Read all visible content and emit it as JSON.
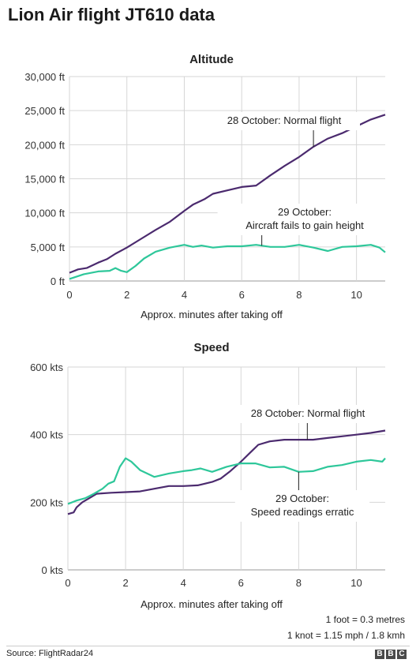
{
  "title": "Lion Air flight JT610 data",
  "notes": [
    "1 foot = 0.3 metres",
    "1 knot = 1.15 mph / 1.8 kmh"
  ],
  "source": "Source: FlightRadar24",
  "logo_letters": [
    "B",
    "B",
    "C"
  ],
  "colors": {
    "normal": "#4b2a6e",
    "erratic": "#2ec79a",
    "grid": "#d6d6d6"
  },
  "chart_data": [
    {
      "type": "line",
      "title": "Altitude",
      "xlabel": "Approx. minutes after taking off",
      "ylabel": "",
      "xlim": [
        0,
        11
      ],
      "ylim": [
        0,
        30000
      ],
      "x_ticks": [
        0,
        2,
        4,
        6,
        8,
        10
      ],
      "y_ticks": [
        0,
        5000,
        10000,
        15000,
        20000,
        25000,
        30000
      ],
      "y_tick_labels": [
        "0 ft",
        "5,000 ft",
        "10,000 ft",
        "15,000 ft",
        "20,000 ft",
        "25,000 ft",
        "30,000 ft"
      ],
      "grid": true,
      "series": [
        {
          "name": "28 October: Normal flight",
          "x": [
            0,
            0.3,
            0.6,
            1,
            1.3,
            1.6,
            2,
            2.5,
            3,
            3.5,
            4,
            4.3,
            4.7,
            5,
            5.5,
            6,
            6.5,
            7,
            7.5,
            8,
            8.5,
            9,
            9.5,
            10,
            10.5,
            11
          ],
          "y": [
            1200,
            1700,
            1900,
            2700,
            3200,
            4000,
            4900,
            6200,
            7500,
            8700,
            10300,
            11200,
            12000,
            12800,
            13300,
            13800,
            14000,
            15500,
            16900,
            18200,
            19700,
            20900,
            21700,
            22700,
            23700,
            24400
          ]
        },
        {
          "name": "29 October: Aircraft fails to gain height",
          "x": [
            0,
            0.5,
            1,
            1.4,
            1.6,
            1.8,
            2,
            2.3,
            2.6,
            3,
            3.5,
            4,
            4.3,
            4.6,
            5,
            5.5,
            6,
            6.5,
            7,
            7.5,
            8,
            8.5,
            9,
            9.5,
            10,
            10.5,
            10.8,
            11
          ],
          "y": [
            300,
            1000,
            1400,
            1500,
            1900,
            1500,
            1300,
            2200,
            3300,
            4300,
            4900,
            5300,
            5000,
            5200,
            4900,
            5100,
            5100,
            5300,
            5000,
            5000,
            5300,
            4900,
            4400,
            5000,
            5100,
            5300,
            4900,
            4200
          ]
        }
      ],
      "annotations": [
        {
          "text": "28 October: Normal flight",
          "series": 0,
          "x": 8.5
        },
        {
          "lines": [
            "29 October:",
            "Aircraft fails to gain height"
          ],
          "series": 1,
          "x": 6.7
        }
      ]
    },
    {
      "type": "line",
      "title": "Speed",
      "xlabel": "Approx. minutes after taking off",
      "ylabel": "",
      "xlim": [
        0,
        11
      ],
      "ylim": [
        0,
        600
      ],
      "x_ticks": [
        0,
        2,
        4,
        6,
        8,
        10
      ],
      "y_ticks": [
        0,
        200,
        400,
        600
      ],
      "y_tick_labels": [
        "0 kts",
        "200 kts",
        "400 kts",
        "600 kts"
      ],
      "grid": true,
      "series": [
        {
          "name": "28 October: Normal flight",
          "x": [
            0,
            0.2,
            0.3,
            0.5,
            0.8,
            1,
            1.5,
            2,
            2.5,
            3,
            3.5,
            4,
            4.5,
            5,
            5.3,
            5.6,
            6,
            6.3,
            6.6,
            7,
            7.5,
            8,
            8.5,
            9,
            9.5,
            10,
            10.5,
            11
          ],
          "y": [
            165,
            170,
            185,
            200,
            215,
            225,
            228,
            230,
            232,
            240,
            248,
            248,
            250,
            260,
            270,
            290,
            320,
            345,
            370,
            380,
            385,
            385,
            385,
            390,
            395,
            400,
            405,
            412
          ]
        },
        {
          "name": "29 October: Speed readings erratic",
          "x": [
            0,
            0.3,
            0.6,
            0.9,
            1.2,
            1.4,
            1.6,
            1.8,
            2,
            2.2,
            2.5,
            3,
            3.5,
            4,
            4.3,
            4.6,
            5,
            5.5,
            6,
            6.5,
            7,
            7.5,
            8,
            8.5,
            9,
            9.5,
            10,
            10.5,
            10.9,
            11
          ],
          "y": [
            195,
            205,
            212,
            225,
            240,
            255,
            262,
            305,
            330,
            320,
            295,
            275,
            285,
            292,
            295,
            300,
            290,
            305,
            315,
            315,
            303,
            305,
            290,
            292,
            305,
            310,
            320,
            325,
            320,
            330
          ]
        }
      ],
      "annotations": [
        {
          "text": "28 October: Normal flight",
          "series": 0,
          "x": 8.3
        },
        {
          "lines": [
            "29 October:",
            "Speed readings erratic"
          ],
          "series": 1,
          "x": 8.0
        }
      ]
    }
  ]
}
